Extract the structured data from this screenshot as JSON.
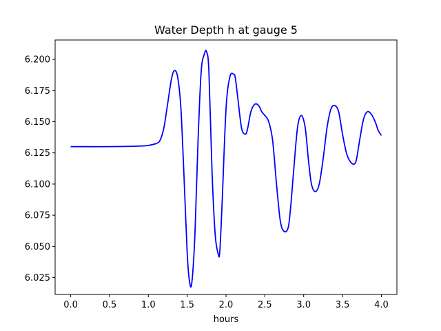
{
  "chart_data": {
    "type": "line",
    "title": "Water Depth h at gauge 5",
    "xlabel": "hours",
    "ylabel": "",
    "xlim": [
      -0.2,
      4.2
    ],
    "ylim": [
      6.0115,
      6.2155
    ],
    "xticks": [
      0.0,
      0.5,
      1.0,
      1.5,
      2.0,
      2.5,
      3.0,
      3.5,
      4.0
    ],
    "xtick_labels": [
      "0.0",
      "0.5",
      "1.0",
      "1.5",
      "2.0",
      "2.5",
      "3.0",
      "3.5",
      "4.0"
    ],
    "yticks": [
      6.025,
      6.05,
      6.075,
      6.1,
      6.125,
      6.15,
      6.175,
      6.2
    ],
    "ytick_labels": [
      "6.025",
      "6.050",
      "6.075",
      "6.100",
      "6.125",
      "6.150",
      "6.175",
      "6.200"
    ],
    "grid": false,
    "series": [
      {
        "color": "#0000ff",
        "x": [
          0.0,
          0.5,
          0.9,
          1.0,
          1.1,
          1.15,
          1.2,
          1.25,
          1.3,
          1.34,
          1.38,
          1.42,
          1.46,
          1.5,
          1.53,
          1.56,
          1.6,
          1.64,
          1.68,
          1.72,
          1.75,
          1.78,
          1.82,
          1.86,
          1.9,
          1.92,
          1.95,
          2.0,
          2.05,
          2.1,
          2.12,
          2.15,
          2.2,
          2.25,
          2.28,
          2.32,
          2.37,
          2.42,
          2.46,
          2.5,
          2.55,
          2.6,
          2.65,
          2.7,
          2.75,
          2.8,
          2.83,
          2.87,
          2.92,
          2.97,
          3.02,
          3.06,
          3.1,
          3.15,
          3.2,
          3.25,
          3.3,
          3.35,
          3.4,
          3.45,
          3.5,
          3.55,
          3.6,
          3.65,
          3.68,
          3.72,
          3.77,
          3.82,
          3.87,
          3.92,
          3.96,
          4.0
        ],
        "y": [
          6.13,
          6.13,
          6.1305,
          6.131,
          6.1325,
          6.135,
          6.145,
          6.165,
          6.185,
          6.191,
          6.185,
          6.16,
          6.105,
          6.045,
          6.022,
          6.021,
          6.06,
          6.135,
          6.19,
          6.204,
          6.206,
          6.19,
          6.11,
          6.06,
          6.044,
          6.046,
          6.085,
          6.16,
          6.186,
          6.188,
          6.185,
          6.17,
          6.145,
          6.14,
          6.145,
          6.158,
          6.164,
          6.163,
          6.158,
          6.155,
          6.15,
          6.135,
          6.1,
          6.07,
          6.062,
          6.065,
          6.08,
          6.11,
          6.145,
          6.155,
          6.145,
          6.12,
          6.1,
          6.094,
          6.1,
          6.12,
          6.145,
          6.16,
          6.163,
          6.158,
          6.14,
          6.125,
          6.118,
          6.116,
          6.12,
          6.135,
          6.152,
          6.158,
          6.156,
          6.15,
          6.143,
          6.139
        ]
      }
    ]
  }
}
